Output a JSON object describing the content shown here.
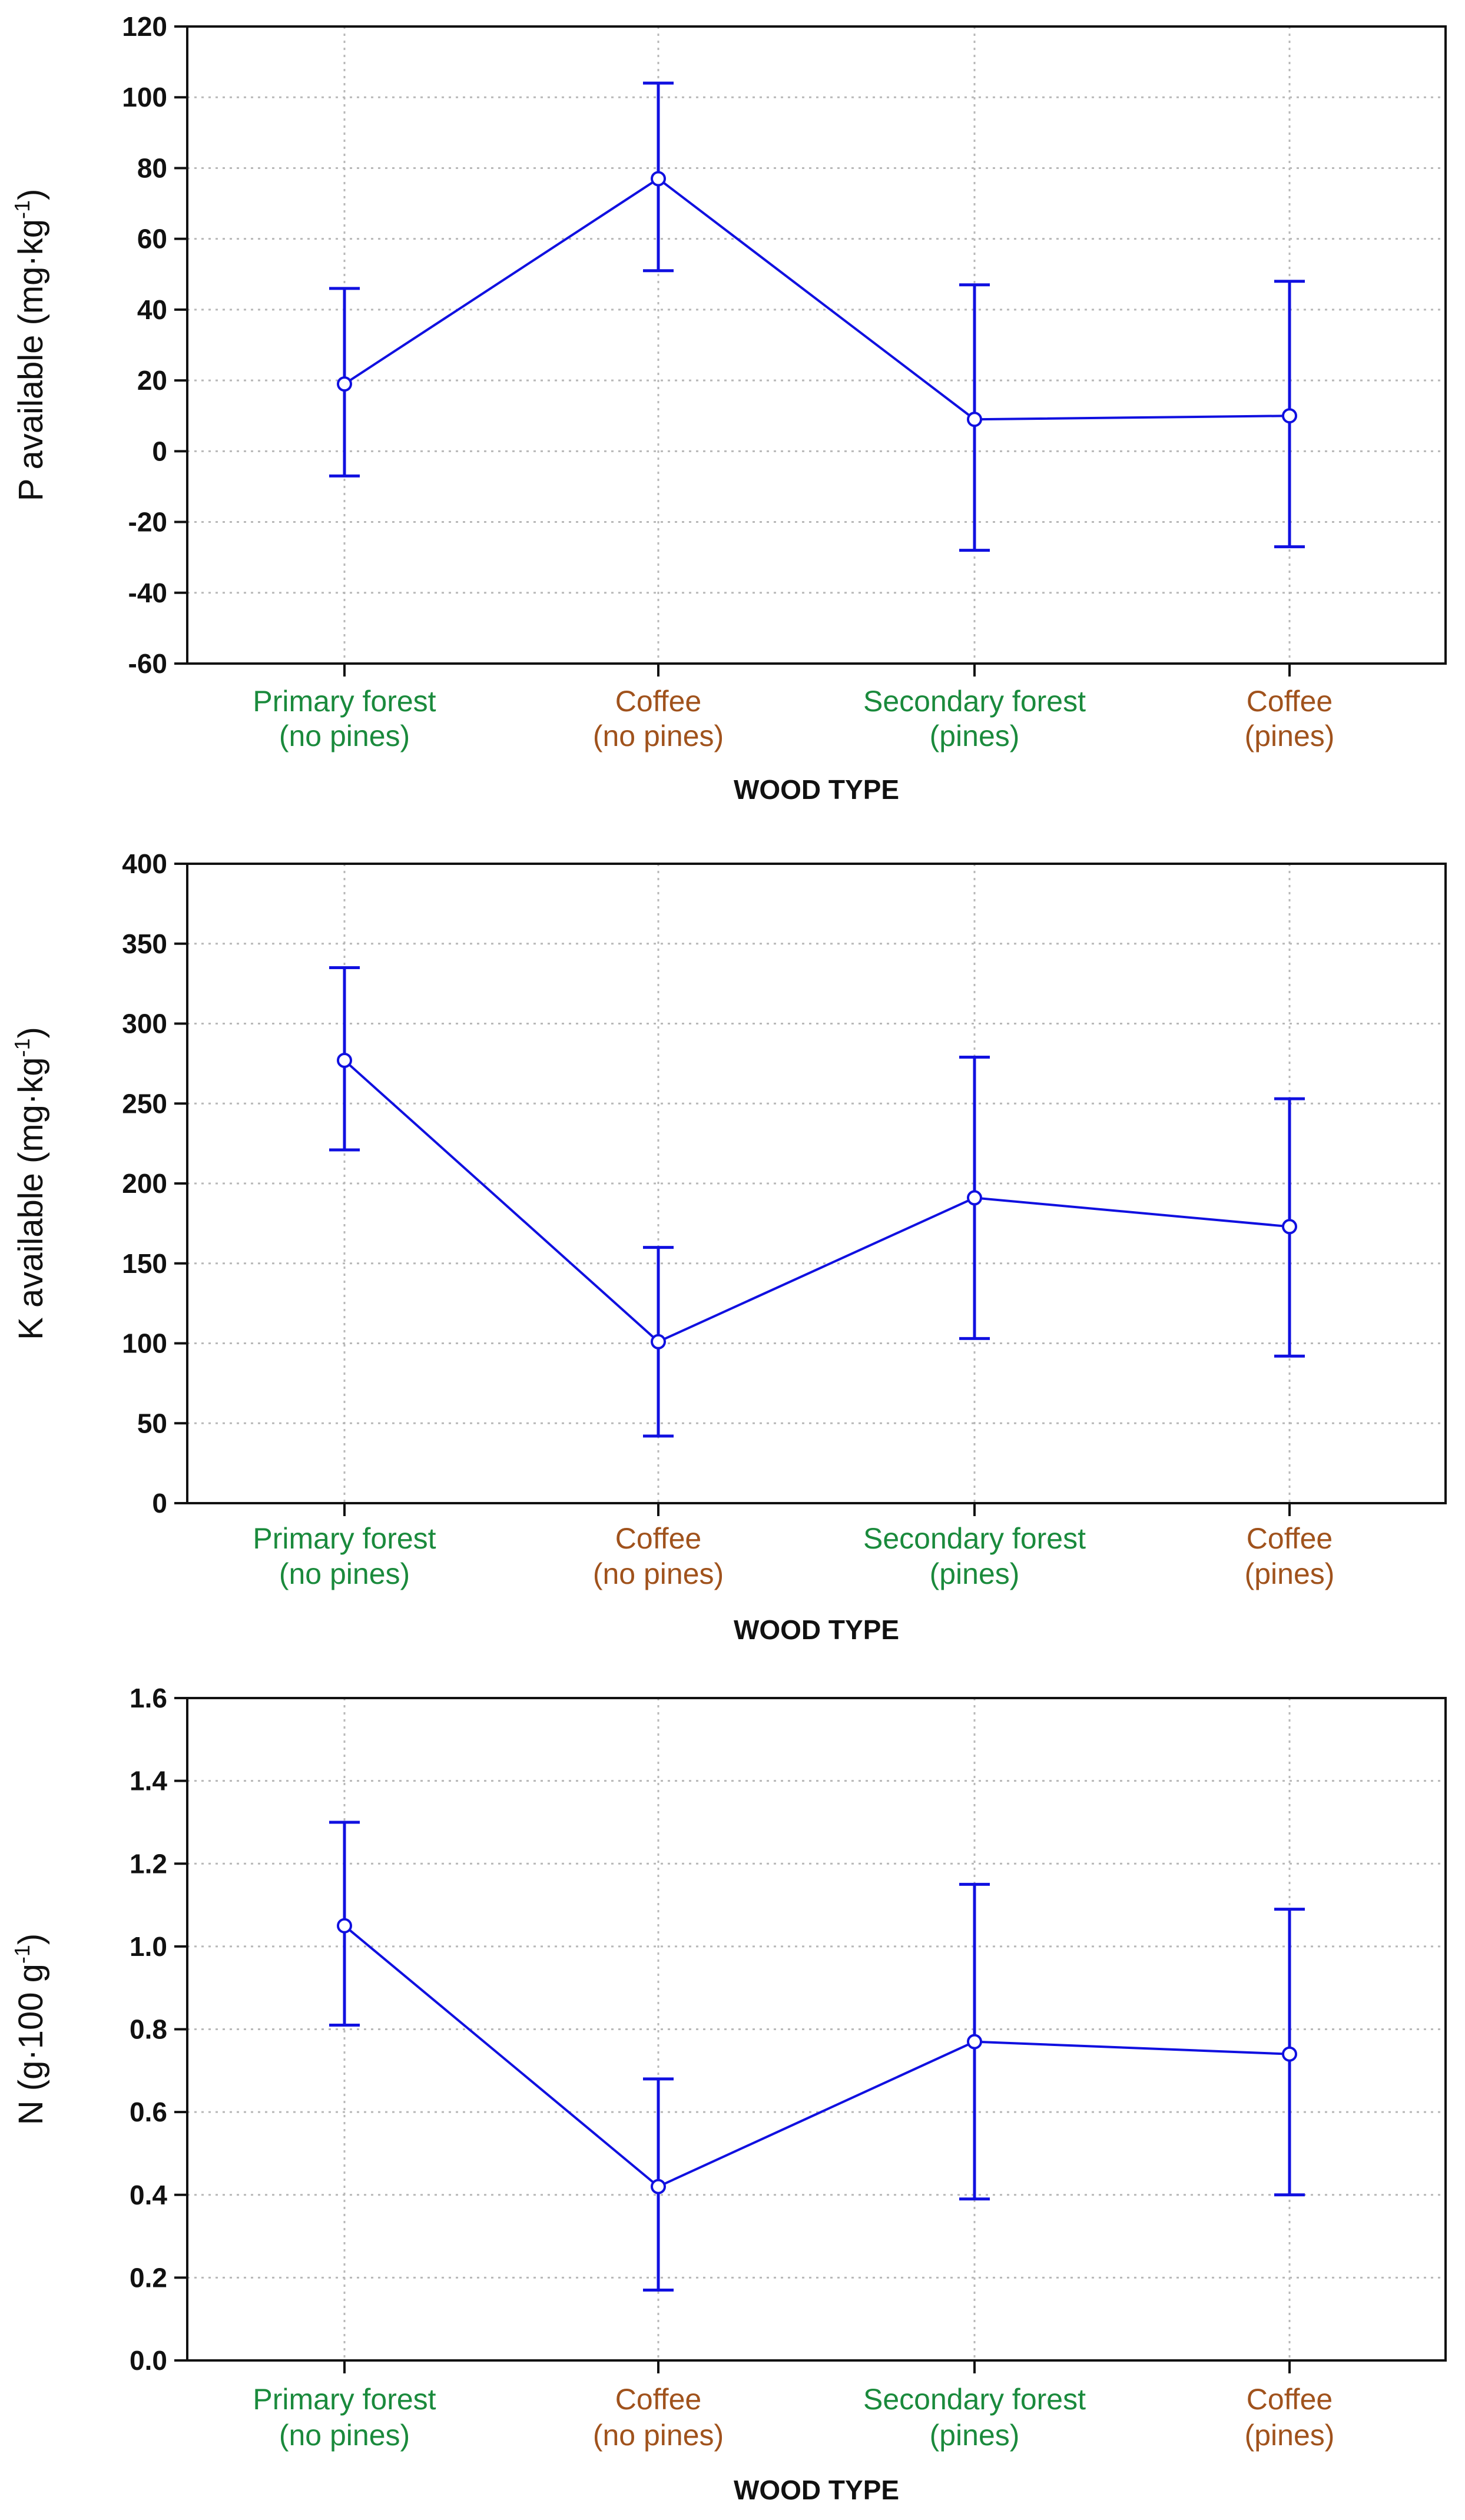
{
  "colors": {
    "line": "#1010e0",
    "primary_label": "#1a8a3c",
    "coffee_label": "#a0521c",
    "grid": "#b8b8b8",
    "axis": "#111111"
  },
  "chart_data": [
    {
      "type": "line",
      "title": "",
      "xlabel": "WOOD TYPE",
      "ylabel": {
        "main": "P available  (mg·kg",
        "sup": "-1",
        "end": ")"
      },
      "categories": [
        {
          "line1": "Primary forest",
          "line2": "(no pines)",
          "color_key": "primary_label"
        },
        {
          "line1": "Coffee",
          "line2": "(no pines)",
          "color_key": "coffee_label"
        },
        {
          "line1": "Secondary forest",
          "line2": "(pines)",
          "color_key": "primary_label"
        },
        {
          "line1": "Coffee",
          "line2": "(pines)",
          "color_key": "coffee_label"
        }
      ],
      "values": [
        19,
        77,
        9,
        10
      ],
      "err_low": [
        -7,
        51,
        -28,
        -27
      ],
      "err_high": [
        46,
        104,
        47,
        48
      ],
      "ylim": [
        -60,
        120
      ],
      "yticks": [
        -60,
        -40,
        -20,
        0,
        20,
        40,
        60,
        80,
        100,
        120
      ],
      "ytick_labels": [
        "-60",
        "-40",
        "-20",
        "0",
        "20",
        "40",
        "60",
        "80",
        "100",
        "120"
      ],
      "grid": true
    },
    {
      "type": "line",
      "title": "",
      "xlabel": "WOOD TYPE",
      "ylabel": {
        "main": "K available  (mg·kg",
        "sup": "-1",
        "end": ")"
      },
      "categories": [
        {
          "line1": "Primary forest",
          "line2": "(no pines)",
          "color_key": "primary_label"
        },
        {
          "line1": "Coffee",
          "line2": "(no pines)",
          "color_key": "coffee_label"
        },
        {
          "line1": "Secondary forest",
          "line2": "(pines)",
          "color_key": "primary_label"
        },
        {
          "line1": "Coffee",
          "line2": "(pines)",
          "color_key": "coffee_label"
        }
      ],
      "values": [
        277,
        101,
        191,
        173
      ],
      "err_low": [
        221,
        42,
        103,
        92
      ],
      "err_high": [
        335,
        160,
        279,
        253
      ],
      "ylim": [
        0,
        400
      ],
      "yticks": [
        0,
        50,
        100,
        150,
        200,
        250,
        300,
        350,
        400
      ],
      "ytick_labels": [
        "0",
        "50",
        "100",
        "150",
        "200",
        "250",
        "300",
        "350",
        "400"
      ],
      "grid": true
    },
    {
      "type": "line",
      "title": "",
      "xlabel": "WOOD TYPE",
      "ylabel": {
        "main": "N (g·100 g",
        "sup": "-1",
        "end": ")"
      },
      "categories": [
        {
          "line1": "Primary forest",
          "line2": "(no pines)",
          "color_key": "primary_label"
        },
        {
          "line1": "Coffee",
          "line2": "(no pines)",
          "color_key": "coffee_label"
        },
        {
          "line1": "Secondary forest",
          "line2": "(pines)",
          "color_key": "primary_label"
        },
        {
          "line1": "Coffee",
          "line2": "(pines)",
          "color_key": "coffee_label"
        }
      ],
      "values": [
        1.05,
        0.42,
        0.77,
        0.74
      ],
      "err_low": [
        0.81,
        0.17,
        0.39,
        0.4
      ],
      "err_high": [
        1.3,
        0.68,
        1.15,
        1.09
      ],
      "ylim": [
        0,
        1.6
      ],
      "yticks": [
        0,
        0.2,
        0.4,
        0.6,
        0.8,
        1.0,
        1.2,
        1.4,
        1.6
      ],
      "ytick_labels": [
        "0.0",
        "0.2",
        "0.4",
        "0.6",
        "0.8",
        "1.0",
        "1.2",
        "1.4",
        "1.6"
      ],
      "grid": true
    }
  ]
}
